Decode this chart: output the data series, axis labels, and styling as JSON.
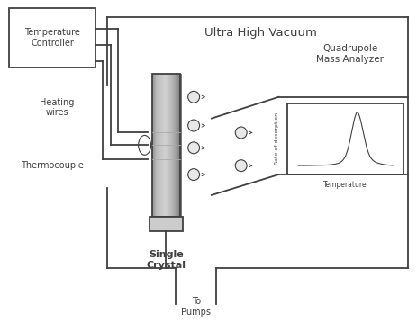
{
  "bg_color": "#ffffff",
  "line_color": "#404040",
  "box_color": "#ffffff",
  "title_text": "Ultra High Vacuum",
  "temp_controller_text": "Temperature\nController",
  "heating_wires_text": "Heating\nwires",
  "thermocouple_text": "Thermocouple",
  "single_crystal_text": "Single\nCrystal",
  "qma_text": "Quadrupole\nMass Analyzer",
  "to_pumps_text": "To\nPumps",
  "rate_desorption_text": "Rate of desorption",
  "temperature_text": "Temperature",
  "figsize": [
    4.63,
    3.58
  ],
  "dpi": 100
}
